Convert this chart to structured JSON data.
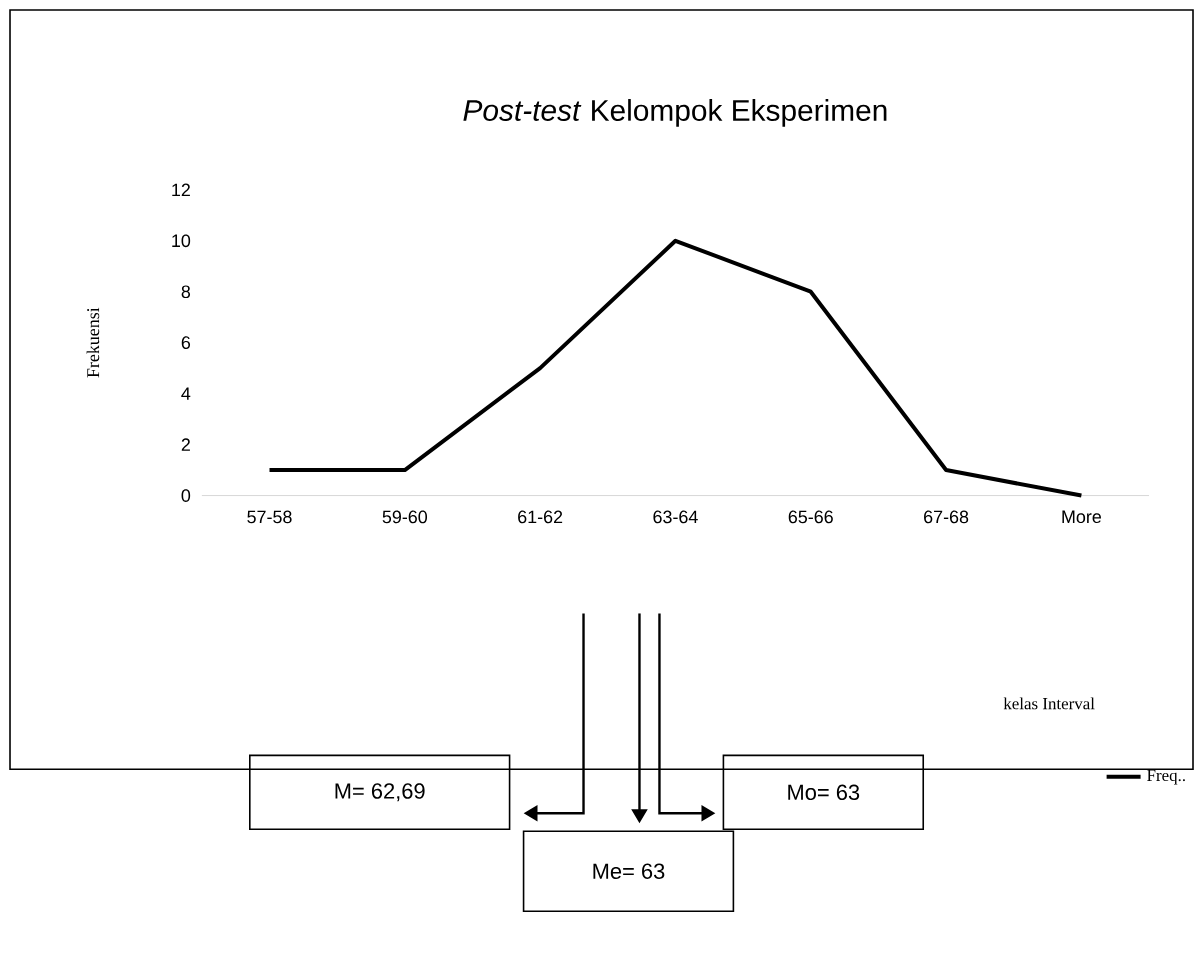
{
  "chart_data": {
    "type": "line",
    "title": "*Post-test* Kelompok Eksperimen",
    "ylabel": "Frekuensi",
    "categories": [
      "57-58",
      "59-60",
      "61-62",
      "63-64",
      "65-66",
      "67-68",
      "More"
    ],
    "series": [
      {
        "name": "Freq..",
        "color": "#000000",
        "values": [
          1,
          1,
          5,
          10,
          8,
          1,
          0
        ]
      }
    ],
    "ylim": [
      0,
      12
    ],
    "yticks": [
      0,
      2,
      4,
      6,
      8,
      10,
      12
    ],
    "grid": false,
    "legend": "bottom right",
    "marker": "none",
    "line_style": "solid",
    "annotations": [
      "M= 62,69",
      "Mo= 63",
      "Me= 63",
      "kelas Interval"
    ]
  }
}
